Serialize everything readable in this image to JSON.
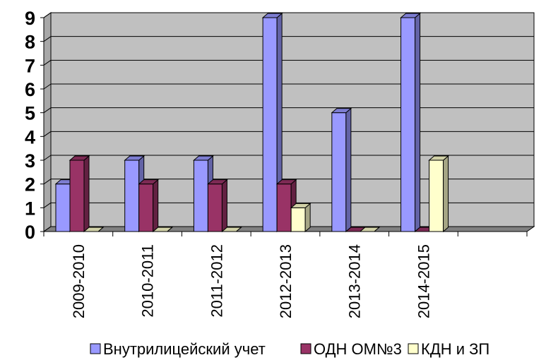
{
  "chart_data": {
    "type": "bar",
    "style": "3d-clustered-column",
    "categories": [
      "2009-2010",
      "2010-2011",
      "2011-2012",
      "2012-2013",
      "2013-2014",
      "2014-2015"
    ],
    "series": [
      {
        "name": "Внутрилицейский учет",
        "values": [
          2,
          3,
          3,
          9,
          5,
          9
        ],
        "color": "#9999ff"
      },
      {
        "name": "ОДН ОМ№3",
        "values": [
          3,
          2,
          2,
          2,
          0,
          0
        ],
        "color": "#993366"
      },
      {
        "name": "КДН и ЗП",
        "values": [
          0,
          0,
          0,
          1,
          0,
          3
        ],
        "color": "#ffffcc"
      }
    ],
    "yticks": [
      0,
      1,
      2,
      3,
      4,
      5,
      6,
      7,
      8,
      9
    ],
    "ylim": [
      0,
      9
    ],
    "grid": true,
    "wall_color": "#c0c0c0",
    "legend_position": "bottom"
  }
}
